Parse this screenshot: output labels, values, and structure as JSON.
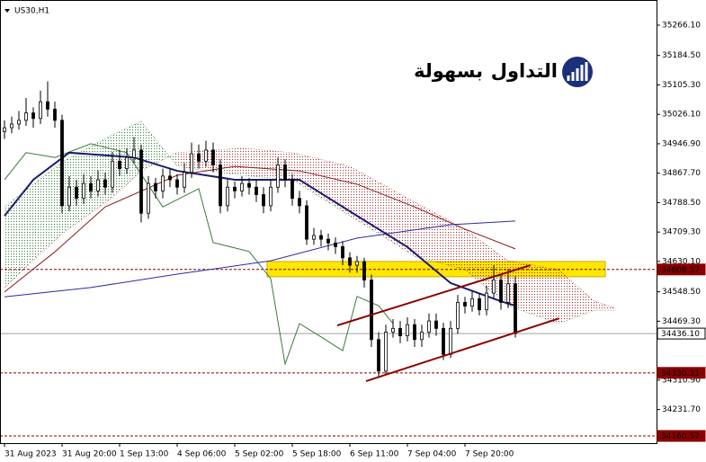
{
  "chart_data": {
    "type": "candlestick",
    "symbol": "US30,H1",
    "logo": {
      "word1": "التداول",
      "word2": "بسهولة",
      "color1": "#1b2f7a",
      "color2": "#e0262b"
    },
    "xlim": [
      -0.625,
      90.625
    ],
    "ylim": [
      34141.2,
      35333.8
    ],
    "xticks": [
      {
        "value": 0,
        "label": "31 Aug 2023"
      },
      {
        "value": 8,
        "label": "31 Aug 20:00"
      },
      {
        "value": 16,
        "label": "1 Sep 13:00"
      },
      {
        "value": 24,
        "label": "4 Sep 06:00"
      },
      {
        "value": 32,
        "label": "5 Sep 02:00"
      },
      {
        "value": 40,
        "label": "5 Sep 18:00"
      },
      {
        "value": 48,
        "label": "6 Sep 11:00"
      },
      {
        "value": 56,
        "label": "7 Sep 04:00"
      },
      {
        "value": 64,
        "label": "7 Sep 20:00"
      }
    ],
    "yticks": [
      {
        "value": 35266.1,
        "label": "35266.10"
      },
      {
        "value": 35184.5,
        "label": "35184.50"
      },
      {
        "value": 35105.3,
        "label": "35105.30"
      },
      {
        "value": 35026.1,
        "label": "35026.10"
      },
      {
        "value": 34946.9,
        "label": "34946.90"
      },
      {
        "value": 34867.7,
        "label": "34867.70"
      },
      {
        "value": 34788.5,
        "label": "34788.50"
      },
      {
        "value": 34709.3,
        "label": "34709.30"
      },
      {
        "value": 34630.1,
        "label": "34630.10"
      },
      {
        "value": 34548.5,
        "label": "34548.50"
      },
      {
        "value": 34469.3,
        "label": "34469.30"
      },
      {
        "value": 34310.9,
        "label": "34310.90"
      },
      {
        "value": 34231.7,
        "label": "34231.70"
      }
    ],
    "candles": {
      "color": "#000000",
      "open": [
        34980,
        34990,
        35000,
        35010,
        35030,
        35015,
        35060,
        35040,
        35010,
        34780,
        34830,
        34800,
        34840,
        34820,
        34850,
        34830,
        34900,
        34880,
        34910,
        34930,
        34760,
        34840,
        34820,
        34860,
        34850,
        34830,
        34870,
        34920,
        34900,
        34930,
        34890,
        34780,
        34830,
        34820,
        34840,
        34830,
        34810,
        34780,
        34830,
        34890,
        34850,
        34800,
        34780,
        34690,
        34700,
        34690,
        34680,
        34670,
        34640,
        34620,
        34630,
        34580,
        34420,
        34335,
        34440,
        34450,
        34430,
        34460,
        34420,
        34440,
        34470,
        34450,
        34380,
        34450,
        34520,
        34510,
        34530,
        34500,
        34545,
        34580,
        34520,
        34570
      ],
      "high": [
        35010,
        35020,
        35035,
        35070,
        35045,
        35090,
        35115,
        35060,
        35025,
        34860,
        34850,
        34865,
        34860,
        34875,
        34870,
        34925,
        34930,
        34935,
        34965,
        34945,
        34860,
        34855,
        34880,
        34880,
        34865,
        34895,
        34950,
        34945,
        34955,
        34950,
        34905,
        34850,
        34845,
        34860,
        34855,
        34850,
        34830,
        34850,
        34910,
        34905,
        34865,
        34820,
        34795,
        34720,
        34715,
        34705,
        34695,
        34685,
        34655,
        34645,
        34640,
        34595,
        34440,
        34460,
        34475,
        34470,
        34480,
        34475,
        34460,
        34490,
        34490,
        34465,
        34470,
        34540,
        34535,
        34550,
        34545,
        34565,
        34620,
        34595,
        34610,
        34590
      ],
      "low": [
        34960,
        34975,
        34985,
        34995,
        34990,
        35000,
        35020,
        34990,
        34760,
        34765,
        34780,
        34785,
        34800,
        34805,
        34810,
        34815,
        34860,
        34865,
        34895,
        34735,
        34745,
        34800,
        34800,
        34830,
        34810,
        34815,
        34855,
        34880,
        34885,
        34870,
        34760,
        34765,
        34800,
        34805,
        34810,
        34790,
        34760,
        34765,
        34815,
        34830,
        34780,
        34760,
        34675,
        34675,
        34670,
        34660,
        34650,
        34620,
        34600,
        34600,
        34560,
        34400,
        34320,
        34325,
        34425,
        34410,
        34415,
        34400,
        34400,
        34425,
        34430,
        34365,
        34370,
        34435,
        34490,
        34495,
        34485,
        34485,
        34530,
        34500,
        34505,
        34425
      ],
      "close": [
        34990,
        35000,
        35010,
        35030,
        35015,
        35060,
        35040,
        35010,
        34780,
        34830,
        34800,
        34840,
        34820,
        34850,
        34830,
        34900,
        34880,
        34910,
        34930,
        34760,
        34840,
        34820,
        34860,
        34850,
        34830,
        34870,
        34920,
        34900,
        34930,
        34890,
        34780,
        34830,
        34820,
        34840,
        34830,
        34810,
        34780,
        34830,
        34890,
        34850,
        34800,
        34780,
        34690,
        34700,
        34690,
        34680,
        34670,
        34640,
        34620,
        34630,
        34580,
        34420,
        34335,
        34440,
        34450,
        34430,
        34460,
        34420,
        34440,
        34470,
        34450,
        34380,
        34450,
        34520,
        34510,
        34530,
        34500,
        34545,
        34580,
        34520,
        34570,
        34436.1
      ]
    },
    "cloud": {
      "up_color": "#2e7d32",
      "down_color": "#a52a2a",
      "x": [
        0,
        8,
        15,
        19,
        24,
        33,
        40,
        48,
        57,
        64,
        70,
        77,
        82,
        85
      ],
      "span_a": [
        34777,
        34898,
        34971,
        35007,
        34886,
        34862,
        34850,
        34753,
        34644,
        34608,
        34511,
        34463,
        34499,
        34499
      ],
      "span_b": [
        34560,
        34705,
        34802,
        34874,
        34923,
        34935,
        34923,
        34886,
        34790,
        34717,
        34632,
        34608,
        34523,
        34504
      ]
    },
    "zone": {
      "x": [
        36.5,
        83.5
      ],
      "y": [
        34589,
        34630
      ],
      "color": "#ffe800",
      "border": "#d4a800"
    },
    "levels": [
      {
        "value": 34608.57,
        "color": "#8b0000",
        "dash": true
      },
      {
        "value": 34436.1,
        "label": "34436.10",
        "color": "#a0a0a0",
        "dash": false
      },
      {
        "value": 34330.31,
        "color": "#8b0000",
        "dash": true
      },
      {
        "value": 34160.57,
        "color": "#8b0000",
        "dash": true
      }
    ],
    "lines": [
      {
        "color": "#3a7a3a",
        "width": 1,
        "x": [
          0,
          3,
          7,
          12,
          17,
          22,
          27,
          29,
          34,
          37,
          39,
          41,
          44,
          47,
          49,
          52,
          54
        ],
        "values": [
          34850,
          34923,
          34910,
          34947,
          34923,
          34777,
          34826,
          34681,
          34657,
          34584,
          34354,
          34463,
          34427,
          34390,
          34536,
          34511,
          34463
        ]
      },
      {
        "color": "#8b1a1a",
        "width": 1,
        "x": [
          0,
          7,
          14,
          24,
          32,
          41,
          49,
          57,
          64,
          71
        ],
        "values": [
          34548,
          34656,
          34777,
          34862,
          34886,
          34874,
          34838,
          34777,
          34717,
          34664
        ]
      },
      {
        "color": "#2a2aa8",
        "width": 1,
        "x": [
          0,
          12,
          24,
          37,
          49,
          62,
          71
        ],
        "values": [
          34535,
          34560,
          34596,
          34632,
          34693,
          34729,
          34739
        ]
      },
      {
        "color": "#1c1c6e",
        "width": 2,
        "x": [
          0,
          4,
          9,
          18,
          24,
          32,
          41,
          49,
          56,
          62,
          69,
          71
        ],
        "values": [
          34753,
          34850,
          34923,
          34910,
          34874,
          34850,
          34850,
          34753,
          34669,
          34572,
          34523,
          34511
        ]
      }
    ],
    "channels": [
      {
        "color": "#8b0000",
        "x": [
          46.25,
          73.1
        ],
        "values": [
          34458,
          34620
        ]
      },
      {
        "color": "#8b0000",
        "x": [
          50.25,
          77.1
        ],
        "values": [
          34308,
          34477
        ]
      }
    ]
  }
}
